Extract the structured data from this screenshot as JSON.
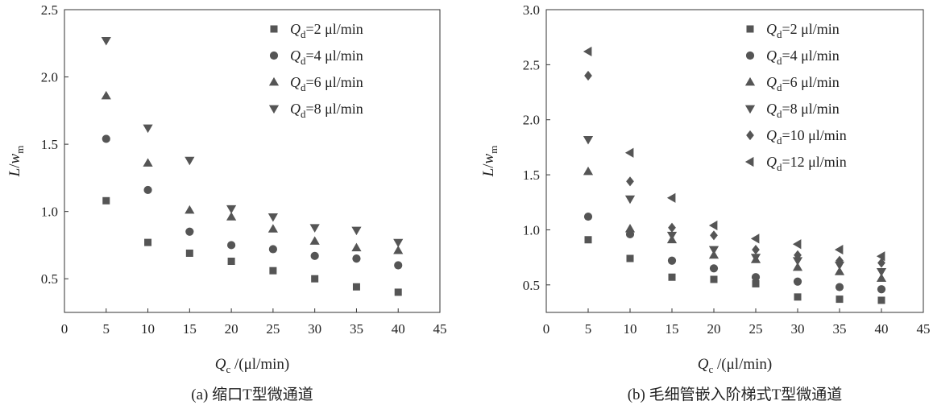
{
  "chart_data": [
    {
      "type": "scatter",
      "caption": "(a) 缩口T型微通道",
      "xlabel": {
        "var": "Q",
        "sub": "c",
        "unit": " /(μl/min)"
      },
      "ylabel": {
        "var": "L",
        "slash": "/",
        "var2": "w",
        "sub": "m"
      },
      "xlim": [
        0,
        45
      ],
      "ylim": [
        0.25,
        2.5
      ],
      "xticks": [
        0,
        5,
        10,
        15,
        20,
        25,
        30,
        35,
        40,
        45
      ],
      "xtick_labels": [
        "0",
        "5",
        "10",
        "15",
        "20",
        "25",
        "30",
        "35",
        "40",
        "45"
      ],
      "yticks": [
        0.5,
        1.0,
        1.5,
        2.0,
        2.5
      ],
      "ytick_labels": [
        "0.5",
        "1.0",
        "1.5",
        "2.0",
        "2.5"
      ],
      "grid": false,
      "legend_position": "top-right",
      "x": [
        5,
        10,
        15,
        20,
        25,
        30,
        35,
        40
      ],
      "series": [
        {
          "legend_var": "Q",
          "legend_sub": "d",
          "legend_rest": "=2 μl/min",
          "marker": "square",
          "color": "#555555",
          "values": [
            1.08,
            0.77,
            0.69,
            0.63,
            0.56,
            0.5,
            0.44,
            0.4
          ]
        },
        {
          "legend_var": "Q",
          "legend_sub": "d",
          "legend_rest": "=4 μl/min",
          "marker": "circle",
          "color": "#555555",
          "values": [
            1.54,
            1.16,
            0.85,
            0.75,
            0.72,
            0.67,
            0.65,
            0.6
          ]
        },
        {
          "legend_var": "Q",
          "legend_sub": "d",
          "legend_rest": "=6 μl/min",
          "marker": "triangle-up",
          "color": "#555555",
          "values": [
            1.86,
            1.36,
            1.01,
            0.96,
            0.87,
            0.78,
            0.73,
            0.71
          ]
        },
        {
          "legend_var": "Q",
          "legend_sub": "d",
          "legend_rest": "=8 μl/min",
          "marker": "triangle-down",
          "color": "#555555",
          "values": [
            2.27,
            1.62,
            1.38,
            1.02,
            0.96,
            0.88,
            0.86,
            0.77
          ]
        }
      ]
    },
    {
      "type": "scatter",
      "caption": "(b) 毛细管嵌入阶梯式T型微通道",
      "xlabel": {
        "var": "Q",
        "sub": "c",
        "unit": " /(μl/min)"
      },
      "ylabel": {
        "var": "L",
        "slash": "/",
        "var2": "w",
        "sub": "m"
      },
      "xlim": [
        0,
        45
      ],
      "ylim": [
        0.25,
        3.0
      ],
      "xticks": [
        0,
        5,
        10,
        15,
        20,
        25,
        30,
        35,
        40,
        45
      ],
      "xtick_labels": [
        "0",
        "5",
        "10",
        "15",
        "20",
        "25",
        "30",
        "35",
        "40",
        "45"
      ],
      "yticks": [
        0.5,
        1.0,
        1.5,
        2.0,
        2.5,
        3.0
      ],
      "ytick_labels": [
        "0.5",
        "1.0",
        "1.5",
        "2.0",
        "2.5",
        "3.0"
      ],
      "grid": false,
      "legend_position": "top-right",
      "x": [
        5,
        10,
        15,
        20,
        25,
        30,
        35,
        40
      ],
      "series": [
        {
          "legend_var": "Q",
          "legend_sub": "d",
          "legend_rest": "=2 μl/min",
          "marker": "square",
          "color": "#555555",
          "values": [
            0.91,
            0.74,
            0.57,
            0.55,
            0.51,
            0.39,
            0.37,
            0.36
          ]
        },
        {
          "legend_var": "Q",
          "legend_sub": "d",
          "legend_rest": "=4 μl/min",
          "marker": "circle",
          "color": "#555555",
          "values": [
            1.12,
            0.96,
            0.72,
            0.65,
            0.57,
            0.53,
            0.48,
            0.46
          ]
        },
        {
          "legend_var": "Q",
          "legend_sub": "d",
          "legend_rest": "=6 μl/min",
          "marker": "triangle-up",
          "color": "#555555",
          "values": [
            1.53,
            1.01,
            0.91,
            0.77,
            0.73,
            0.66,
            0.62,
            0.56
          ]
        },
        {
          "legend_var": "Q",
          "legend_sub": "d",
          "legend_rest": "=8 μl/min",
          "marker": "triangle-down",
          "color": "#555555",
          "values": [
            1.82,
            1.28,
            0.95,
            0.82,
            0.75,
            0.72,
            0.68,
            0.62
          ]
        },
        {
          "legend_var": "Q",
          "legend_sub": "d",
          "legend_rest": "=10 μl/min",
          "marker": "diamond",
          "color": "#555555",
          "values": [
            2.4,
            1.44,
            1.02,
            0.95,
            0.82,
            0.77,
            0.72,
            0.7
          ]
        },
        {
          "legend_var": "Q",
          "legend_sub": "d",
          "legend_rest": "=12 μl/min",
          "marker": "triangle-left",
          "color": "#555555",
          "values": [
            2.62,
            1.7,
            1.29,
            1.04,
            0.92,
            0.87,
            0.82,
            0.76
          ]
        }
      ]
    }
  ]
}
